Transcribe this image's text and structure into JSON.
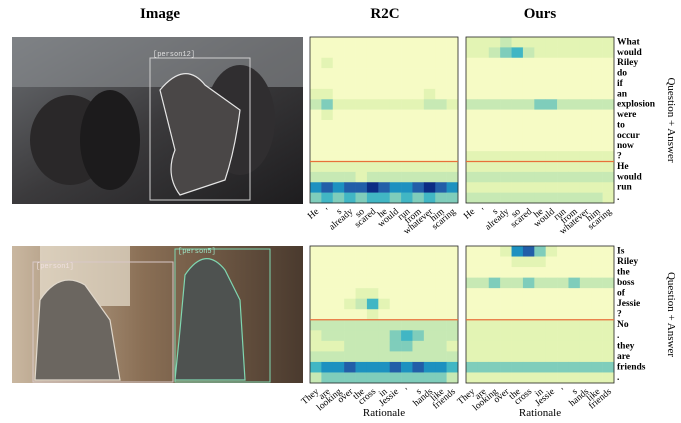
{
  "columns": [
    "Image",
    "R2C",
    "Ours"
  ],
  "axis_labels": {
    "right": "Question + Answer",
    "bottom": "Rationale"
  },
  "colormap": [
    "#ffffd9",
    "#f6fbc5",
    "#e3f4b4",
    "#c7e9b4",
    "#7fcdbb",
    "#41b6c4",
    "#1d91c0",
    "#225ea8",
    "#0c2c84"
  ],
  "divider_color": "#e8703a",
  "examples": [
    {
      "tags": [
        "[person12]"
      ],
      "question": [
        "What",
        "would",
        "Riley",
        "do",
        "if",
        "an",
        "explosion",
        "were",
        "to",
        "occur",
        "now",
        "?"
      ],
      "answer": [
        "He",
        "would",
        "run",
        "."
      ],
      "rationale": [
        "He",
        "'",
        "s",
        "already",
        "so",
        "scared",
        "he",
        "would",
        "run",
        "from",
        "whatever",
        "him",
        "scaring"
      ],
      "r2c": [
        [
          1,
          1,
          1,
          1,
          1,
          1,
          1,
          1,
          1,
          1,
          1,
          1,
          1
        ],
        [
          1,
          1,
          1,
          1,
          1,
          1,
          1,
          1,
          1,
          1,
          1,
          1,
          1
        ],
        [
          1,
          2,
          1,
          1,
          1,
          1,
          1,
          1,
          1,
          1,
          1,
          1,
          1
        ],
        [
          1,
          1,
          1,
          1,
          1,
          1,
          1,
          1,
          1,
          1,
          1,
          1,
          1
        ],
        [
          1,
          1,
          1,
          1,
          1,
          1,
          1,
          1,
          1,
          1,
          1,
          1,
          1
        ],
        [
          2,
          2,
          1,
          1,
          1,
          1,
          1,
          1,
          1,
          1,
          2,
          1,
          1
        ],
        [
          3,
          4,
          2,
          2,
          2,
          2,
          2,
          2,
          2,
          2,
          3,
          3,
          2
        ],
        [
          1,
          2,
          1,
          1,
          1,
          1,
          1,
          1,
          1,
          1,
          1,
          1,
          1
        ],
        [
          1,
          1,
          1,
          1,
          1,
          1,
          1,
          1,
          1,
          1,
          1,
          1,
          1
        ],
        [
          1,
          1,
          1,
          1,
          1,
          1,
          1,
          1,
          1,
          1,
          1,
          1,
          1
        ],
        [
          1,
          1,
          1,
          1,
          1,
          1,
          1,
          1,
          1,
          1,
          1,
          1,
          1
        ],
        [
          1,
          1,
          1,
          1,
          1,
          1,
          1,
          1,
          1,
          1,
          1,
          1,
          1
        ],
        [
          2,
          2,
          2,
          2,
          2,
          2,
          2,
          2,
          2,
          2,
          2,
          2,
          2
        ],
        [
          3,
          3,
          3,
          3,
          2,
          3,
          3,
          3,
          3,
          3,
          3,
          3,
          3
        ],
        [
          6,
          7,
          6,
          7,
          7,
          8,
          7,
          6,
          6,
          7,
          8,
          7,
          6
        ],
        [
          4,
          5,
          4,
          5,
          4,
          5,
          5,
          4,
          5,
          4,
          5,
          4,
          4
        ]
      ],
      "ours": [
        [
          2,
          2,
          2,
          3,
          2,
          2,
          2,
          2,
          2,
          2,
          2,
          2,
          2
        ],
        [
          2,
          2,
          3,
          4,
          5,
          3,
          2,
          2,
          2,
          2,
          2,
          2,
          2
        ],
        [
          1,
          1,
          1,
          1,
          1,
          1,
          1,
          1,
          1,
          1,
          1,
          1,
          1
        ],
        [
          1,
          1,
          1,
          1,
          1,
          1,
          1,
          1,
          1,
          1,
          1,
          1,
          1
        ],
        [
          1,
          1,
          1,
          1,
          1,
          1,
          1,
          1,
          1,
          1,
          1,
          1,
          1
        ],
        [
          1,
          1,
          1,
          1,
          1,
          1,
          1,
          1,
          1,
          1,
          1,
          1,
          1
        ],
        [
          3,
          3,
          3,
          3,
          3,
          3,
          4,
          4,
          3,
          3,
          3,
          3,
          3
        ],
        [
          1,
          1,
          1,
          1,
          1,
          1,
          1,
          1,
          1,
          1,
          1,
          1,
          1
        ],
        [
          1,
          1,
          1,
          1,
          1,
          1,
          1,
          1,
          1,
          1,
          1,
          1,
          1
        ],
        [
          1,
          1,
          1,
          1,
          1,
          1,
          1,
          1,
          1,
          1,
          1,
          1,
          1
        ],
        [
          1,
          1,
          1,
          1,
          1,
          1,
          1,
          1,
          1,
          1,
          1,
          1,
          1
        ],
        [
          2,
          2,
          2,
          2,
          2,
          2,
          2,
          2,
          2,
          2,
          2,
          2,
          2
        ],
        [
          2,
          2,
          2,
          2,
          2,
          2,
          2,
          2,
          2,
          2,
          2,
          2,
          2
        ],
        [
          3,
          3,
          3,
          3,
          3,
          3,
          3,
          3,
          3,
          3,
          3,
          3,
          3
        ],
        [
          2,
          2,
          2,
          2,
          2,
          2,
          2,
          2,
          2,
          2,
          2,
          2,
          2
        ],
        [
          3,
          3,
          3,
          3,
          3,
          3,
          3,
          3,
          3,
          3,
          3,
          3,
          2
        ]
      ]
    },
    {
      "tags": [
        "[person1]",
        "[person5]"
      ],
      "question": [
        "Is",
        "Riley",
        "the",
        "boss",
        "of",
        "Jessie",
        "?"
      ],
      "answer": [
        "No",
        ".",
        "they",
        "are",
        "friends",
        "."
      ],
      "rationale": [
        "They",
        "are",
        "looking",
        "over",
        "the",
        "cross",
        "in",
        "Jessie",
        "'",
        "s",
        "hands",
        "like",
        "friends"
      ],
      "r2c": [
        [
          1,
          1,
          1,
          1,
          1,
          1,
          1,
          1,
          1,
          1,
          1,
          1,
          1
        ],
        [
          1,
          1,
          1,
          1,
          1,
          1,
          1,
          1,
          1,
          1,
          1,
          1,
          1
        ],
        [
          1,
          1,
          1,
          1,
          1,
          1,
          1,
          1,
          1,
          1,
          1,
          1,
          1
        ],
        [
          1,
          1,
          1,
          1,
          1,
          1,
          1,
          1,
          1,
          1,
          1,
          1,
          1
        ],
        [
          1,
          1,
          1,
          1,
          2,
          2,
          1,
          1,
          1,
          1,
          1,
          1,
          1
        ],
        [
          1,
          1,
          1,
          2,
          3,
          5,
          2,
          1,
          1,
          1,
          1,
          1,
          1
        ],
        [
          1,
          1,
          1,
          1,
          1,
          2,
          1,
          1,
          1,
          1,
          1,
          1,
          1
        ],
        [
          3,
          3,
          3,
          3,
          3,
          3,
          3,
          3,
          3,
          3,
          3,
          3,
          3
        ],
        [
          2,
          3,
          3,
          3,
          3,
          3,
          3,
          4,
          5,
          4,
          3,
          3,
          3
        ],
        [
          2,
          2,
          2,
          3,
          3,
          3,
          3,
          4,
          4,
          3,
          3,
          3,
          2
        ],
        [
          3,
          3,
          3,
          3,
          3,
          3,
          3,
          3,
          3,
          3,
          3,
          3,
          3
        ],
        [
          5,
          6,
          6,
          7,
          6,
          6,
          6,
          7,
          6,
          7,
          6,
          6,
          5
        ],
        [
          3,
          4,
          4,
          4,
          4,
          4,
          4,
          4,
          4,
          4,
          4,
          4,
          3
        ]
      ],
      "ours": [
        [
          1,
          1,
          1,
          2,
          6,
          7,
          4,
          2,
          1,
          1,
          1,
          1,
          1
        ],
        [
          1,
          1,
          1,
          1,
          2,
          2,
          2,
          1,
          1,
          1,
          1,
          1,
          1
        ],
        [
          1,
          1,
          1,
          1,
          1,
          1,
          1,
          1,
          1,
          1,
          1,
          1,
          1
        ],
        [
          3,
          3,
          4,
          3,
          3,
          4,
          3,
          3,
          3,
          4,
          3,
          3,
          3
        ],
        [
          1,
          1,
          1,
          1,
          1,
          1,
          1,
          1,
          1,
          1,
          1,
          1,
          1
        ],
        [
          1,
          1,
          1,
          1,
          1,
          1,
          1,
          1,
          1,
          1,
          1,
          1,
          1
        ],
        [
          1,
          1,
          1,
          1,
          1,
          1,
          1,
          1,
          1,
          1,
          1,
          1,
          1
        ],
        [
          2,
          2,
          2,
          2,
          2,
          2,
          2,
          2,
          2,
          2,
          2,
          2,
          2
        ],
        [
          2,
          2,
          2,
          2,
          2,
          2,
          2,
          2,
          2,
          2,
          2,
          2,
          2
        ],
        [
          2,
          2,
          2,
          2,
          2,
          2,
          2,
          2,
          2,
          2,
          2,
          2,
          2
        ],
        [
          2,
          2,
          2,
          2,
          2,
          2,
          2,
          2,
          2,
          2,
          2,
          2,
          2
        ],
        [
          4,
          4,
          4,
          4,
          4,
          4,
          4,
          4,
          4,
          4,
          4,
          4,
          4
        ],
        [
          2,
          2,
          2,
          2,
          2,
          2,
          2,
          2,
          2,
          2,
          2,
          2,
          2
        ]
      ]
    }
  ]
}
